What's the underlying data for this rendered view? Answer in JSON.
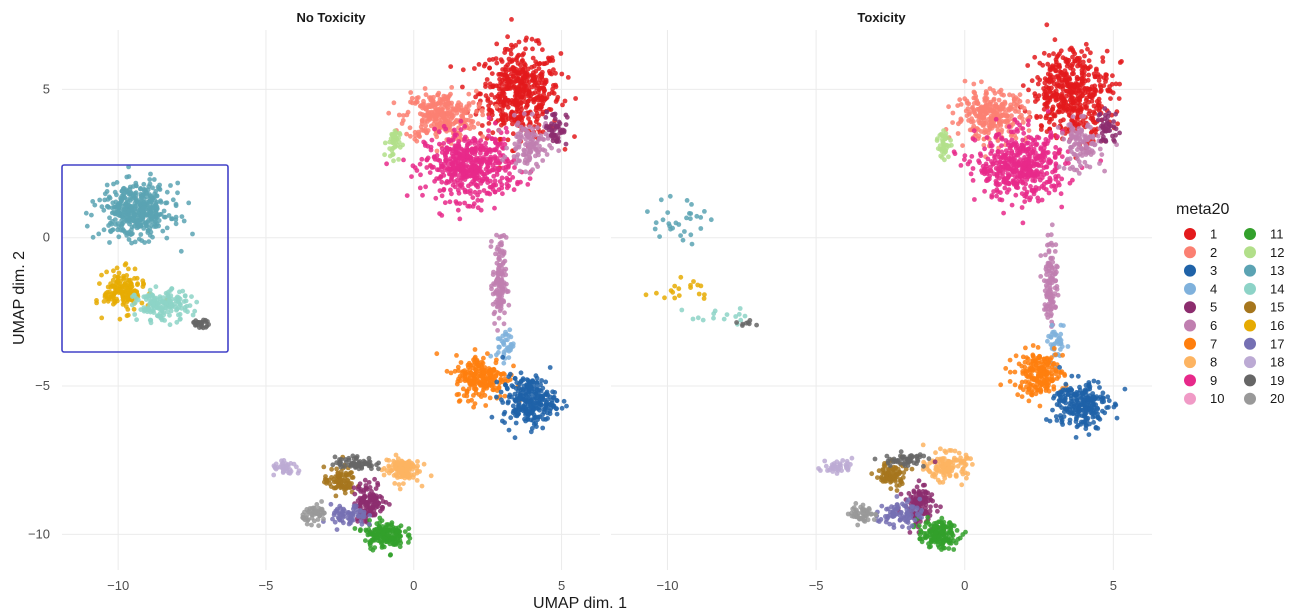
{
  "chart_data": {
    "type": "scatter",
    "facets": [
      "No Toxicity",
      "Toxicity"
    ],
    "xlabel": "UMAP dim. 1",
    "ylabel": "UMAP dim. 2",
    "xlim": [
      -11.9,
      6.3
    ],
    "ylim": [
      -11.2,
      7.0
    ],
    "xticks": [
      -10,
      -5,
      0,
      5
    ],
    "xtick_labels": [
      "−10",
      "−5",
      "0",
      "5"
    ],
    "yticks": [
      5,
      0,
      -5,
      -10
    ],
    "ytick_labels": [
      "5",
      "0",
      "−5",
      "−10"
    ],
    "legend": {
      "title": "meta20",
      "position": "right",
      "entries": [
        {
          "label": "1",
          "color": "#e31a1c"
        },
        {
          "label": "2",
          "color": "#fb8072"
        },
        {
          "label": "3",
          "color": "#1f62a8"
        },
        {
          "label": "4",
          "color": "#7fb1dc"
        },
        {
          "label": "5",
          "color": "#8c2d6e"
        },
        {
          "label": "6",
          "color": "#c07fb0"
        },
        {
          "label": "7",
          "color": "#ff7f0e"
        },
        {
          "label": "8",
          "color": "#fdb462"
        },
        {
          "label": "9",
          "color": "#e7298a"
        },
        {
          "label": "10",
          "color": "#f09ac6"
        },
        {
          "label": "11",
          "color": "#33a02c"
        },
        {
          "label": "12",
          "color": "#b2df8a"
        },
        {
          "label": "13",
          "color": "#5ba3b3"
        },
        {
          "label": "14",
          "color": "#8dd3c7"
        },
        {
          "label": "15",
          "color": "#a6761d"
        },
        {
          "label": "16",
          "color": "#e6ab02"
        },
        {
          "label": "17",
          "color": "#7570b3"
        },
        {
          "label": "18",
          "color": "#bcaad4"
        },
        {
          "label": "19",
          "color": "#666666"
        },
        {
          "label": "20",
          "color": "#999999"
        }
      ]
    },
    "clusters": [
      {
        "facet": "No Toxicity",
        "meta": 1,
        "cx": 3.6,
        "cy": 4.9,
        "sx": 0.9,
        "sy": 1.0,
        "n": 500
      },
      {
        "facet": "No Toxicity",
        "meta": 2,
        "cx": 0.9,
        "cy": 4.1,
        "sx": 0.8,
        "sy": 0.55,
        "n": 300
      },
      {
        "facet": "No Toxicity",
        "meta": 9,
        "cx": 1.9,
        "cy": 2.4,
        "sx": 1.0,
        "sy": 0.75,
        "n": 500
      },
      {
        "facet": "No Toxicity",
        "meta": 6,
        "cx": 3.9,
        "cy": 3.1,
        "sx": 0.45,
        "sy": 0.55,
        "n": 120
      },
      {
        "facet": "No Toxicity",
        "meta": 5,
        "cx": 4.8,
        "cy": 3.7,
        "sx": 0.25,
        "sy": 0.4,
        "n": 50
      },
      {
        "facet": "No Toxicity",
        "meta": 12,
        "cx": -0.7,
        "cy": 3.2,
        "sx": 0.15,
        "sy": 0.35,
        "n": 40
      },
      {
        "facet": "No Toxicity",
        "meta": 6,
        "cx": 2.9,
        "cy": -1.5,
        "sx": 0.15,
        "sy": 1.0,
        "n": 120
      },
      {
        "facet": "No Toxicity",
        "meta": 4,
        "cx": 3.1,
        "cy": -3.6,
        "sx": 0.2,
        "sy": 0.35,
        "n": 40
      },
      {
        "facet": "No Toxicity",
        "meta": 7,
        "cx": 2.3,
        "cy": -4.7,
        "sx": 0.6,
        "sy": 0.5,
        "n": 220
      },
      {
        "facet": "No Toxicity",
        "meta": 3,
        "cx": 3.9,
        "cy": -5.5,
        "sx": 0.6,
        "sy": 0.55,
        "n": 260
      },
      {
        "facet": "No Toxicity",
        "meta": 8,
        "cx": -0.4,
        "cy": -7.8,
        "sx": 0.4,
        "sy": 0.3,
        "n": 120
      },
      {
        "facet": "No Toxicity",
        "meta": 15,
        "cx": -2.5,
        "cy": -8.2,
        "sx": 0.35,
        "sy": 0.3,
        "n": 80
      },
      {
        "facet": "No Toxicity",
        "meta": 19,
        "cx": -2.0,
        "cy": -7.6,
        "sx": 0.45,
        "sy": 0.15,
        "n": 60
      },
      {
        "facet": "No Toxicity",
        "meta": 5,
        "cx": -1.5,
        "cy": -8.9,
        "sx": 0.35,
        "sy": 0.45,
        "n": 130
      },
      {
        "facet": "No Toxicity",
        "meta": 11,
        "cx": -1.0,
        "cy": -10.0,
        "sx": 0.45,
        "sy": 0.3,
        "n": 160
      },
      {
        "facet": "No Toxicity",
        "meta": 17,
        "cx": -2.2,
        "cy": -9.4,
        "sx": 0.4,
        "sy": 0.25,
        "n": 70
      },
      {
        "facet": "No Toxicity",
        "meta": 20,
        "cx": -3.3,
        "cy": -9.3,
        "sx": 0.3,
        "sy": 0.2,
        "n": 50
      },
      {
        "facet": "No Toxicity",
        "meta": 18,
        "cx": -4.3,
        "cy": -7.8,
        "sx": 0.35,
        "sy": 0.15,
        "n": 40
      },
      {
        "facet": "No Toxicity",
        "meta": 13,
        "cx": -9.4,
        "cy": 0.9,
        "sx": 0.8,
        "sy": 0.6,
        "n": 420
      },
      {
        "facet": "No Toxicity",
        "meta": 16,
        "cx": -9.8,
        "cy": -1.8,
        "sx": 0.45,
        "sy": 0.45,
        "n": 160
      },
      {
        "facet": "No Toxicity",
        "meta": 14,
        "cx": -8.5,
        "cy": -2.3,
        "sx": 0.6,
        "sy": 0.35,
        "n": 160
      },
      {
        "facet": "No Toxicity",
        "meta": 19,
        "cx": -7.2,
        "cy": -2.9,
        "sx": 0.2,
        "sy": 0.08,
        "n": 25
      },
      {
        "facet": "Toxicity",
        "meta": 1,
        "cx": 3.6,
        "cy": 4.9,
        "sx": 0.9,
        "sy": 1.0,
        "n": 480
      },
      {
        "facet": "Toxicity",
        "meta": 2,
        "cx": 0.9,
        "cy": 4.1,
        "sx": 0.8,
        "sy": 0.55,
        "n": 280
      },
      {
        "facet": "Toxicity",
        "meta": 9,
        "cx": 1.9,
        "cy": 2.4,
        "sx": 1.0,
        "sy": 0.75,
        "n": 480
      },
      {
        "facet": "Toxicity",
        "meta": 6,
        "cx": 3.9,
        "cy": 3.1,
        "sx": 0.45,
        "sy": 0.55,
        "n": 110
      },
      {
        "facet": "Toxicity",
        "meta": 5,
        "cx": 4.8,
        "cy": 3.7,
        "sx": 0.25,
        "sy": 0.4,
        "n": 45
      },
      {
        "facet": "Toxicity",
        "meta": 12,
        "cx": -0.7,
        "cy": 3.2,
        "sx": 0.15,
        "sy": 0.35,
        "n": 35
      },
      {
        "facet": "Toxicity",
        "meta": 6,
        "cx": 2.9,
        "cy": -1.5,
        "sx": 0.15,
        "sy": 1.0,
        "n": 110
      },
      {
        "facet": "Toxicity",
        "meta": 4,
        "cx": 3.1,
        "cy": -3.6,
        "sx": 0.2,
        "sy": 0.35,
        "n": 40
      },
      {
        "facet": "Toxicity",
        "meta": 7,
        "cx": 2.5,
        "cy": -4.6,
        "sx": 0.55,
        "sy": 0.5,
        "n": 200
      },
      {
        "facet": "Toxicity",
        "meta": 3,
        "cx": 3.9,
        "cy": -5.6,
        "sx": 0.6,
        "sy": 0.55,
        "n": 240
      },
      {
        "facet": "Toxicity",
        "meta": 8,
        "cx": -0.6,
        "cy": -7.7,
        "sx": 0.45,
        "sy": 0.3,
        "n": 130
      },
      {
        "facet": "Toxicity",
        "meta": 15,
        "cx": -2.5,
        "cy": -8.0,
        "sx": 0.35,
        "sy": 0.3,
        "n": 80
      },
      {
        "facet": "Toxicity",
        "meta": 19,
        "cx": -2.0,
        "cy": -7.5,
        "sx": 0.45,
        "sy": 0.15,
        "n": 50
      },
      {
        "facet": "Toxicity",
        "meta": 5,
        "cx": -1.5,
        "cy": -9.0,
        "sx": 0.35,
        "sy": 0.45,
        "n": 120
      },
      {
        "facet": "Toxicity",
        "meta": 11,
        "cx": -0.9,
        "cy": -10.0,
        "sx": 0.45,
        "sy": 0.3,
        "n": 150
      },
      {
        "facet": "Toxicity",
        "meta": 17,
        "cx": -2.2,
        "cy": -9.3,
        "sx": 0.45,
        "sy": 0.3,
        "n": 80
      },
      {
        "facet": "Toxicity",
        "meta": 20,
        "cx": -3.4,
        "cy": -9.3,
        "sx": 0.3,
        "sy": 0.2,
        "n": 50
      },
      {
        "facet": "Toxicity",
        "meta": 18,
        "cx": -4.3,
        "cy": -7.7,
        "sx": 0.35,
        "sy": 0.15,
        "n": 40
      },
      {
        "facet": "Toxicity",
        "meta": 13,
        "cx": -9.5,
        "cy": 0.6,
        "sx": 0.7,
        "sy": 0.6,
        "n": 30
      },
      {
        "facet": "Toxicity",
        "meta": 16,
        "cx": -9.5,
        "cy": -1.8,
        "sx": 0.6,
        "sy": 0.25,
        "n": 18
      },
      {
        "facet": "Toxicity",
        "meta": 14,
        "cx": -8.3,
        "cy": -2.6,
        "sx": 0.7,
        "sy": 0.25,
        "n": 15
      },
      {
        "facet": "Toxicity",
        "meta": 19,
        "cx": -7.3,
        "cy": -2.9,
        "sx": 0.2,
        "sy": 0.08,
        "n": 8
      }
    ]
  }
}
